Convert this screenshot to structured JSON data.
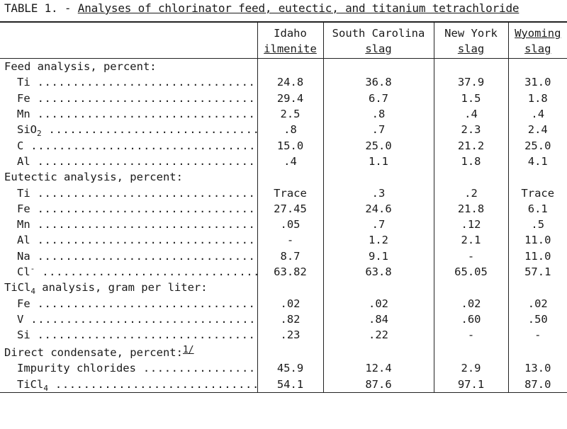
{
  "title": {
    "prefix": "TABLE 1. - ",
    "caption": "Analyses of chlorinator feed, eutectic, and titanium tetrachloride"
  },
  "columns": [
    {
      "line1": "Idaho",
      "line2": "ilmenite"
    },
    {
      "line1": "South Carolina",
      "line2": "slag"
    },
    {
      "line1": "New York",
      "line2": "slag"
    },
    {
      "line1": "Wyoming",
      "line2": "slag"
    }
  ],
  "sections": [
    {
      "heading": "Feed analysis, percent:",
      "rows": [
        {
          "label": "Ti",
          "values": [
            "24.8",
            "36.8",
            "37.9",
            "31.0"
          ]
        },
        {
          "label": "Fe",
          "values": [
            "29.4",
            "6.7",
            "1.5",
            "1.8"
          ]
        },
        {
          "label": "Mn",
          "values": [
            "2.5",
            ".8",
            ".4",
            ".4"
          ]
        },
        {
          "label": "SiO",
          "sub": "2",
          "values": [
            ".8",
            ".7",
            "2.3",
            "2.4"
          ]
        },
        {
          "label": "C",
          "values": [
            "15.0",
            "25.0",
            "21.2",
            "25.0"
          ]
        },
        {
          "label": "Al",
          "values": [
            ".4",
            "1.1",
            "1.8",
            "4.1"
          ]
        }
      ]
    },
    {
      "heading": "Eutectic analysis, percent:",
      "rows": [
        {
          "label": "Ti",
          "values": [
            "Trace",
            ".3",
            ".2",
            "Trace"
          ]
        },
        {
          "label": "Fe",
          "values": [
            "27.45",
            "24.6",
            "21.8",
            "6.1"
          ]
        },
        {
          "label": "Mn",
          "values": [
            ".05",
            ".7",
            ".12",
            ".5"
          ]
        },
        {
          "label": "Al",
          "values": [
            "-",
            "1.2",
            "2.1",
            "11.0"
          ]
        },
        {
          "label": "Na",
          "values": [
            "8.7",
            "9.1",
            "-",
            "11.0"
          ]
        },
        {
          "label": "Cl",
          "sup": "-",
          "values": [
            "63.82",
            "63.8",
            "65.05",
            "57.1"
          ]
        }
      ]
    },
    {
      "heading": "TiCl",
      "heading_sub": "4",
      "heading_rest": " analysis, gram per liter:",
      "rows": [
        {
          "label": "Fe",
          "values": [
            ".02",
            ".02",
            ".02",
            ".02"
          ]
        },
        {
          "label": "V",
          "values": [
            ".82",
            ".84",
            ".60",
            ".50"
          ]
        },
        {
          "label": "Si",
          "values": [
            ".23",
            ".22",
            "-",
            "-"
          ]
        }
      ]
    },
    {
      "heading": "Direct condensate, percent:",
      "heading_note": "1/",
      "rows": [
        {
          "label": "Impurity chlorides",
          "values": [
            "45.9",
            "12.4",
            "2.9",
            "13.0"
          ]
        },
        {
          "label": "TiCl",
          "sub": "4",
          "values": [
            "54.1",
            "87.6",
            "97.1",
            "87.0"
          ]
        }
      ]
    }
  ]
}
